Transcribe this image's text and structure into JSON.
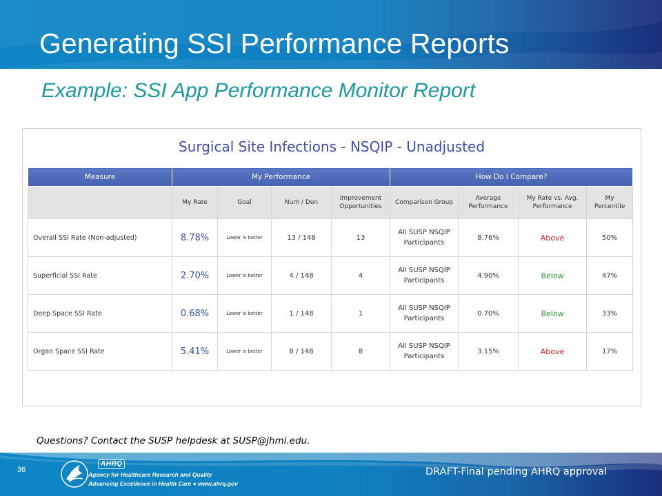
{
  "slide": {
    "title": "Generating SSI Performance Reports",
    "subtitle": "Example: SSI App Performance Monitor Report"
  },
  "report": {
    "title": "Surgical Site Infections - NSQIP - Unadjusted",
    "group_headers": {
      "measure": "Measure",
      "my_performance": "My Performance",
      "how_compare": "How Do I Compare?"
    },
    "columns": {
      "my_rate": "My Rate",
      "goal": "Goal",
      "num_den": "Num / Den",
      "improvement": "Improvement Opportunities",
      "comparison_group": "Comparison Group",
      "average": "Average Performance",
      "rate_vs_avg": "My Rate vs. Avg. Performance",
      "percentile": "My Percentile"
    },
    "rows": [
      {
        "measure": "Overall SSI Rate (Non-adjusted)",
        "my_rate": "8.78%",
        "goal": "Lower is better",
        "num_den": "13 / 148",
        "improvement": "13",
        "comparison_group": "All SUSP NSQIP Participants",
        "average": "8.76%",
        "rate_vs_avg": "Above",
        "percentile": "50%"
      },
      {
        "measure": "Superficial SSI Rate",
        "my_rate": "2.70%",
        "goal": "Lower is better",
        "num_den": "4 / 148",
        "improvement": "4",
        "comparison_group": "All SUSP NSQIP Participants",
        "average": "4.90%",
        "rate_vs_avg": "Below",
        "percentile": "47%"
      },
      {
        "measure": "Deep Space SSI Rate",
        "my_rate": "0.68%",
        "goal": "Lower is better",
        "num_den": "1 / 148",
        "improvement": "1",
        "comparison_group": "All SUSP NSQIP Participants",
        "average": "0.70%",
        "rate_vs_avg": "Below",
        "percentile": "33%"
      },
      {
        "measure": "Organ Space SSI Rate",
        "my_rate": "5.41%",
        "goal": "Lower is better",
        "num_den": "8 / 148",
        "improvement": "8",
        "comparison_group": "All SUSP NSQIP Participants",
        "average": "3.15%",
        "rate_vs_avg": "Above",
        "percentile": "17%"
      }
    ],
    "colors": {
      "above": "#e02020",
      "below": "#2d9a2d",
      "header": "#4a66b4",
      "rate": "#3550a8"
    }
  },
  "footer": {
    "questions": "Questions? Contact the SUSP helpdesk at SUSP@jhmi.edu.",
    "page_number": "36",
    "ahrq_wordmark": "AHRQ",
    "agency_name": "Agency for Healthcare Research and Quality",
    "agency_tagline": "Advancing Excellence in Health Care ● www.ahrq.gov",
    "draft_note": "DRAFT-Final pending AHRQ approval"
  },
  "icons": {
    "seal": "hhs-eagle-seal-icon"
  }
}
